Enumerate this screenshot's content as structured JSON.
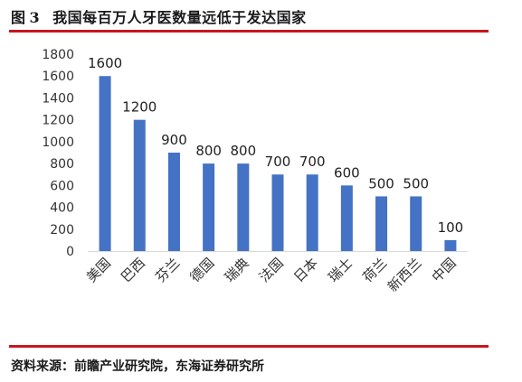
{
  "figure": {
    "label": "图",
    "number": "3",
    "title": "我国每百万人牙医数量远低于发达国家",
    "source": "资料来源：前瞻产业研究院，东海证券研究所"
  },
  "colors": {
    "bar": "#4472c4",
    "rule": "#c8161d"
  },
  "chart_data": {
    "type": "bar",
    "title": "我国每百万人牙医数量远低于发达国家",
    "xlabel": "",
    "ylabel": "",
    "categories": [
      "美国",
      "巴西",
      "芬兰",
      "德国",
      "瑞典",
      "法国",
      "日本",
      "瑞士",
      "荷兰",
      "新西兰",
      "中国"
    ],
    "values": [
      1600,
      1200,
      900,
      800,
      800,
      700,
      700,
      600,
      500,
      500,
      100
    ],
    "yticks": [
      0,
      200,
      400,
      600,
      800,
      1000,
      1200,
      1400,
      1600,
      1800
    ],
    "ylim": [
      0,
      1800
    ],
    "grid": false,
    "legend": "none",
    "data_labels": true
  }
}
